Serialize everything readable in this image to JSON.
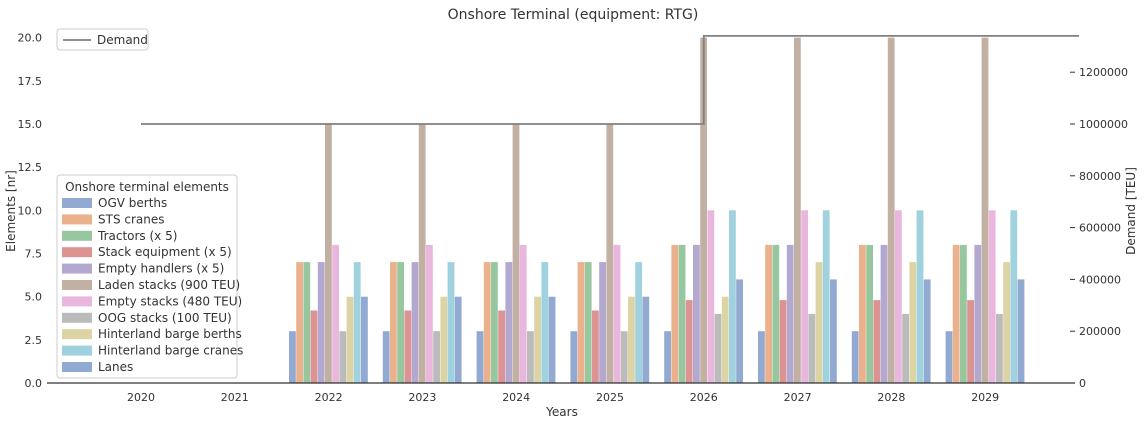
{
  "chart_data": {
    "type": "bar",
    "title": "Onshore Terminal (equipment: RTG)",
    "xlabel": "Years",
    "ylabel": "Elements [nr]",
    "y2label": "Demand [TEU]",
    "ylim": [
      0,
      20.5
    ],
    "y2lim": [
      0,
      1366667
    ],
    "yticks": [
      "0.0",
      "2.5",
      "5.0",
      "7.5",
      "10.0",
      "12.5",
      "15.0",
      "17.5",
      "20.0"
    ],
    "y2ticks": [
      "0",
      "200000",
      "400000",
      "600000",
      "800000",
      "1000000",
      "1200000"
    ],
    "categories": [
      "2020",
      "2021",
      "2022",
      "2023",
      "2024",
      "2025",
      "2026",
      "2027",
      "2028",
      "2029"
    ],
    "legend_title": "Onshore terminal elements",
    "legend_position": "lower-left",
    "series": [
      {
        "name": "OGV berths",
        "color": "#92a9d1",
        "values": [
          0,
          0,
          3,
          3,
          3,
          3,
          3,
          3,
          3,
          3
        ]
      },
      {
        "name": "STS cranes",
        "color": "#ebb08c",
        "values": [
          0,
          0,
          7,
          7,
          7,
          7,
          8,
          8,
          8,
          8
        ]
      },
      {
        "name": "Tractors (x 5)",
        "color": "#97c79f",
        "values": [
          0,
          0,
          7,
          7,
          7,
          7,
          8,
          8,
          8,
          8
        ]
      },
      {
        "name": "Stack equipment (x 5)",
        "color": "#de9393",
        "values": [
          0,
          0,
          4.2,
          4.2,
          4.2,
          4.2,
          4.8,
          4.8,
          4.8,
          4.8
        ]
      },
      {
        "name": "Empty handlers (x 5)",
        "color": "#b3a8d0",
        "values": [
          0,
          0,
          7,
          7,
          7,
          7,
          8,
          8,
          8,
          8
        ]
      },
      {
        "name": "Laden stacks (900 TEU)",
        "color": "#c2b0a3",
        "values": [
          0,
          0,
          15,
          15,
          15,
          15,
          20,
          20,
          20,
          20
        ]
      },
      {
        "name": "Empty stacks (480 TEU)",
        "color": "#e9b7de",
        "values": [
          0,
          0,
          8,
          8,
          8,
          8,
          10,
          10,
          10,
          10
        ]
      },
      {
        "name": "OOG stacks (100 TEU)",
        "color": "#bbbbbb",
        "values": [
          0,
          0,
          3,
          3,
          3,
          3,
          4,
          4,
          4,
          4
        ]
      },
      {
        "name": "Hinterland barge berths",
        "color": "#ddd4a6",
        "values": [
          0,
          0,
          5,
          5,
          5,
          5,
          5,
          7,
          7,
          7
        ]
      },
      {
        "name": "Hinterland barge cranes",
        "color": "#9fd1de",
        "values": [
          0,
          0,
          7,
          7,
          7,
          7,
          10,
          10,
          10,
          10
        ]
      },
      {
        "name": "Lanes",
        "color": "#92a9d1",
        "values": [
          0,
          0,
          5,
          5,
          5,
          5,
          6,
          6,
          6,
          6
        ]
      }
    ],
    "demand": {
      "name": "Demand",
      "color": "#808080",
      "axis": "right",
      "step": "post",
      "values": [
        1000000,
        1000000,
        1000000,
        1000000,
        1000000,
        1000000,
        1340000,
        1340000,
        1340000,
        1340000,
        1340000
      ]
    }
  }
}
